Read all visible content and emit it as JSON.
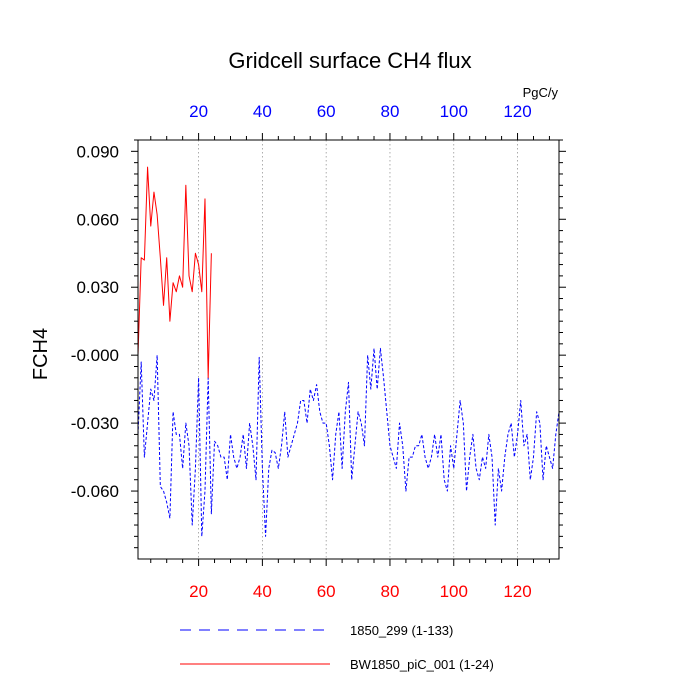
{
  "chart_data": {
    "type": "line",
    "title": "Gridcell surface CH4 flux",
    "ylabel": "FCH4",
    "units": "PgC/y",
    "xlim": [
      1,
      133
    ],
    "ylim": [
      -0.09,
      0.095
    ],
    "y_ticks": [
      0.09,
      0.06,
      0.03,
      -0.0,
      -0.03,
      -0.06
    ],
    "y_tick_labels": [
      "0.090",
      "0.060",
      "0.030",
      "-0.000",
      "-0.030",
      "-0.060"
    ],
    "x_ticks": [
      20,
      40,
      60,
      80,
      100,
      120
    ],
    "x_tick_labels": [
      "20",
      "40",
      "60",
      "80",
      "100",
      "120"
    ],
    "grid": "vertical dotted at x ticks",
    "legend_position": "bottom",
    "colors": {
      "bottom_axis": "#ff0000",
      "top_axis": "#0000ff"
    },
    "series": [
      {
        "name": "1850_299 (1-133)",
        "color": "#0000ff",
        "style": "dashed",
        "x_start": 1,
        "values": [
          -0.035,
          -0.003,
          -0.045,
          -0.03,
          -0.015,
          -0.02,
          0.0,
          -0.058,
          -0.06,
          -0.065,
          -0.072,
          -0.025,
          -0.035,
          -0.035,
          -0.05,
          -0.03,
          -0.04,
          -0.075,
          -0.05,
          -0.01,
          -0.08,
          -0.06,
          -0.01,
          -0.07,
          -0.038,
          -0.04,
          -0.045,
          -0.045,
          -0.055,
          -0.035,
          -0.045,
          -0.05,
          -0.045,
          -0.035,
          -0.05,
          -0.03,
          -0.04,
          -0.055,
          -0.001,
          -0.05,
          -0.08,
          -0.05,
          -0.042,
          -0.043,
          -0.05,
          -0.04,
          -0.025,
          -0.045,
          -0.04,
          -0.035,
          -0.03,
          -0.02,
          -0.02,
          -0.03,
          -0.015,
          -0.02,
          -0.013,
          -0.025,
          -0.03,
          -0.03,
          -0.04,
          -0.055,
          -0.035,
          -0.025,
          -0.05,
          -0.025,
          -0.012,
          -0.055,
          -0.04,
          -0.025,
          -0.03,
          -0.04,
          0.0,
          -0.015,
          0.003,
          -0.015,
          0.003,
          -0.01,
          -0.025,
          -0.04,
          -0.045,
          -0.05,
          -0.03,
          -0.04,
          -0.06,
          -0.045,
          -0.045,
          -0.04,
          -0.04,
          -0.035,
          -0.045,
          -0.05,
          -0.045,
          -0.035,
          -0.045,
          -0.035,
          -0.055,
          -0.06,
          -0.04,
          -0.05,
          -0.035,
          -0.02,
          -0.03,
          -0.06,
          -0.045,
          -0.035,
          -0.05,
          -0.055,
          -0.045,
          -0.05,
          -0.035,
          -0.045,
          -0.075,
          -0.05,
          -0.06,
          -0.045,
          -0.035,
          -0.03,
          -0.045,
          -0.035,
          -0.02,
          -0.04,
          -0.035,
          -0.055,
          -0.045,
          -0.025,
          -0.03,
          -0.055,
          -0.04,
          -0.045,
          -0.05,
          -0.035,
          -0.025
        ]
      },
      {
        "name": "BW1850_piC_001 (1-24)",
        "color": "#ff0000",
        "style": "solid",
        "x_start": 1,
        "values": [
          0.0,
          0.043,
          0.042,
          0.083,
          0.057,
          0.072,
          0.062,
          0.043,
          0.022,
          0.043,
          0.015,
          0.032,
          0.028,
          0.035,
          0.03,
          0.075,
          0.035,
          0.028,
          0.045,
          0.04,
          0.028,
          0.069,
          -0.01,
          0.045
        ]
      }
    ]
  }
}
